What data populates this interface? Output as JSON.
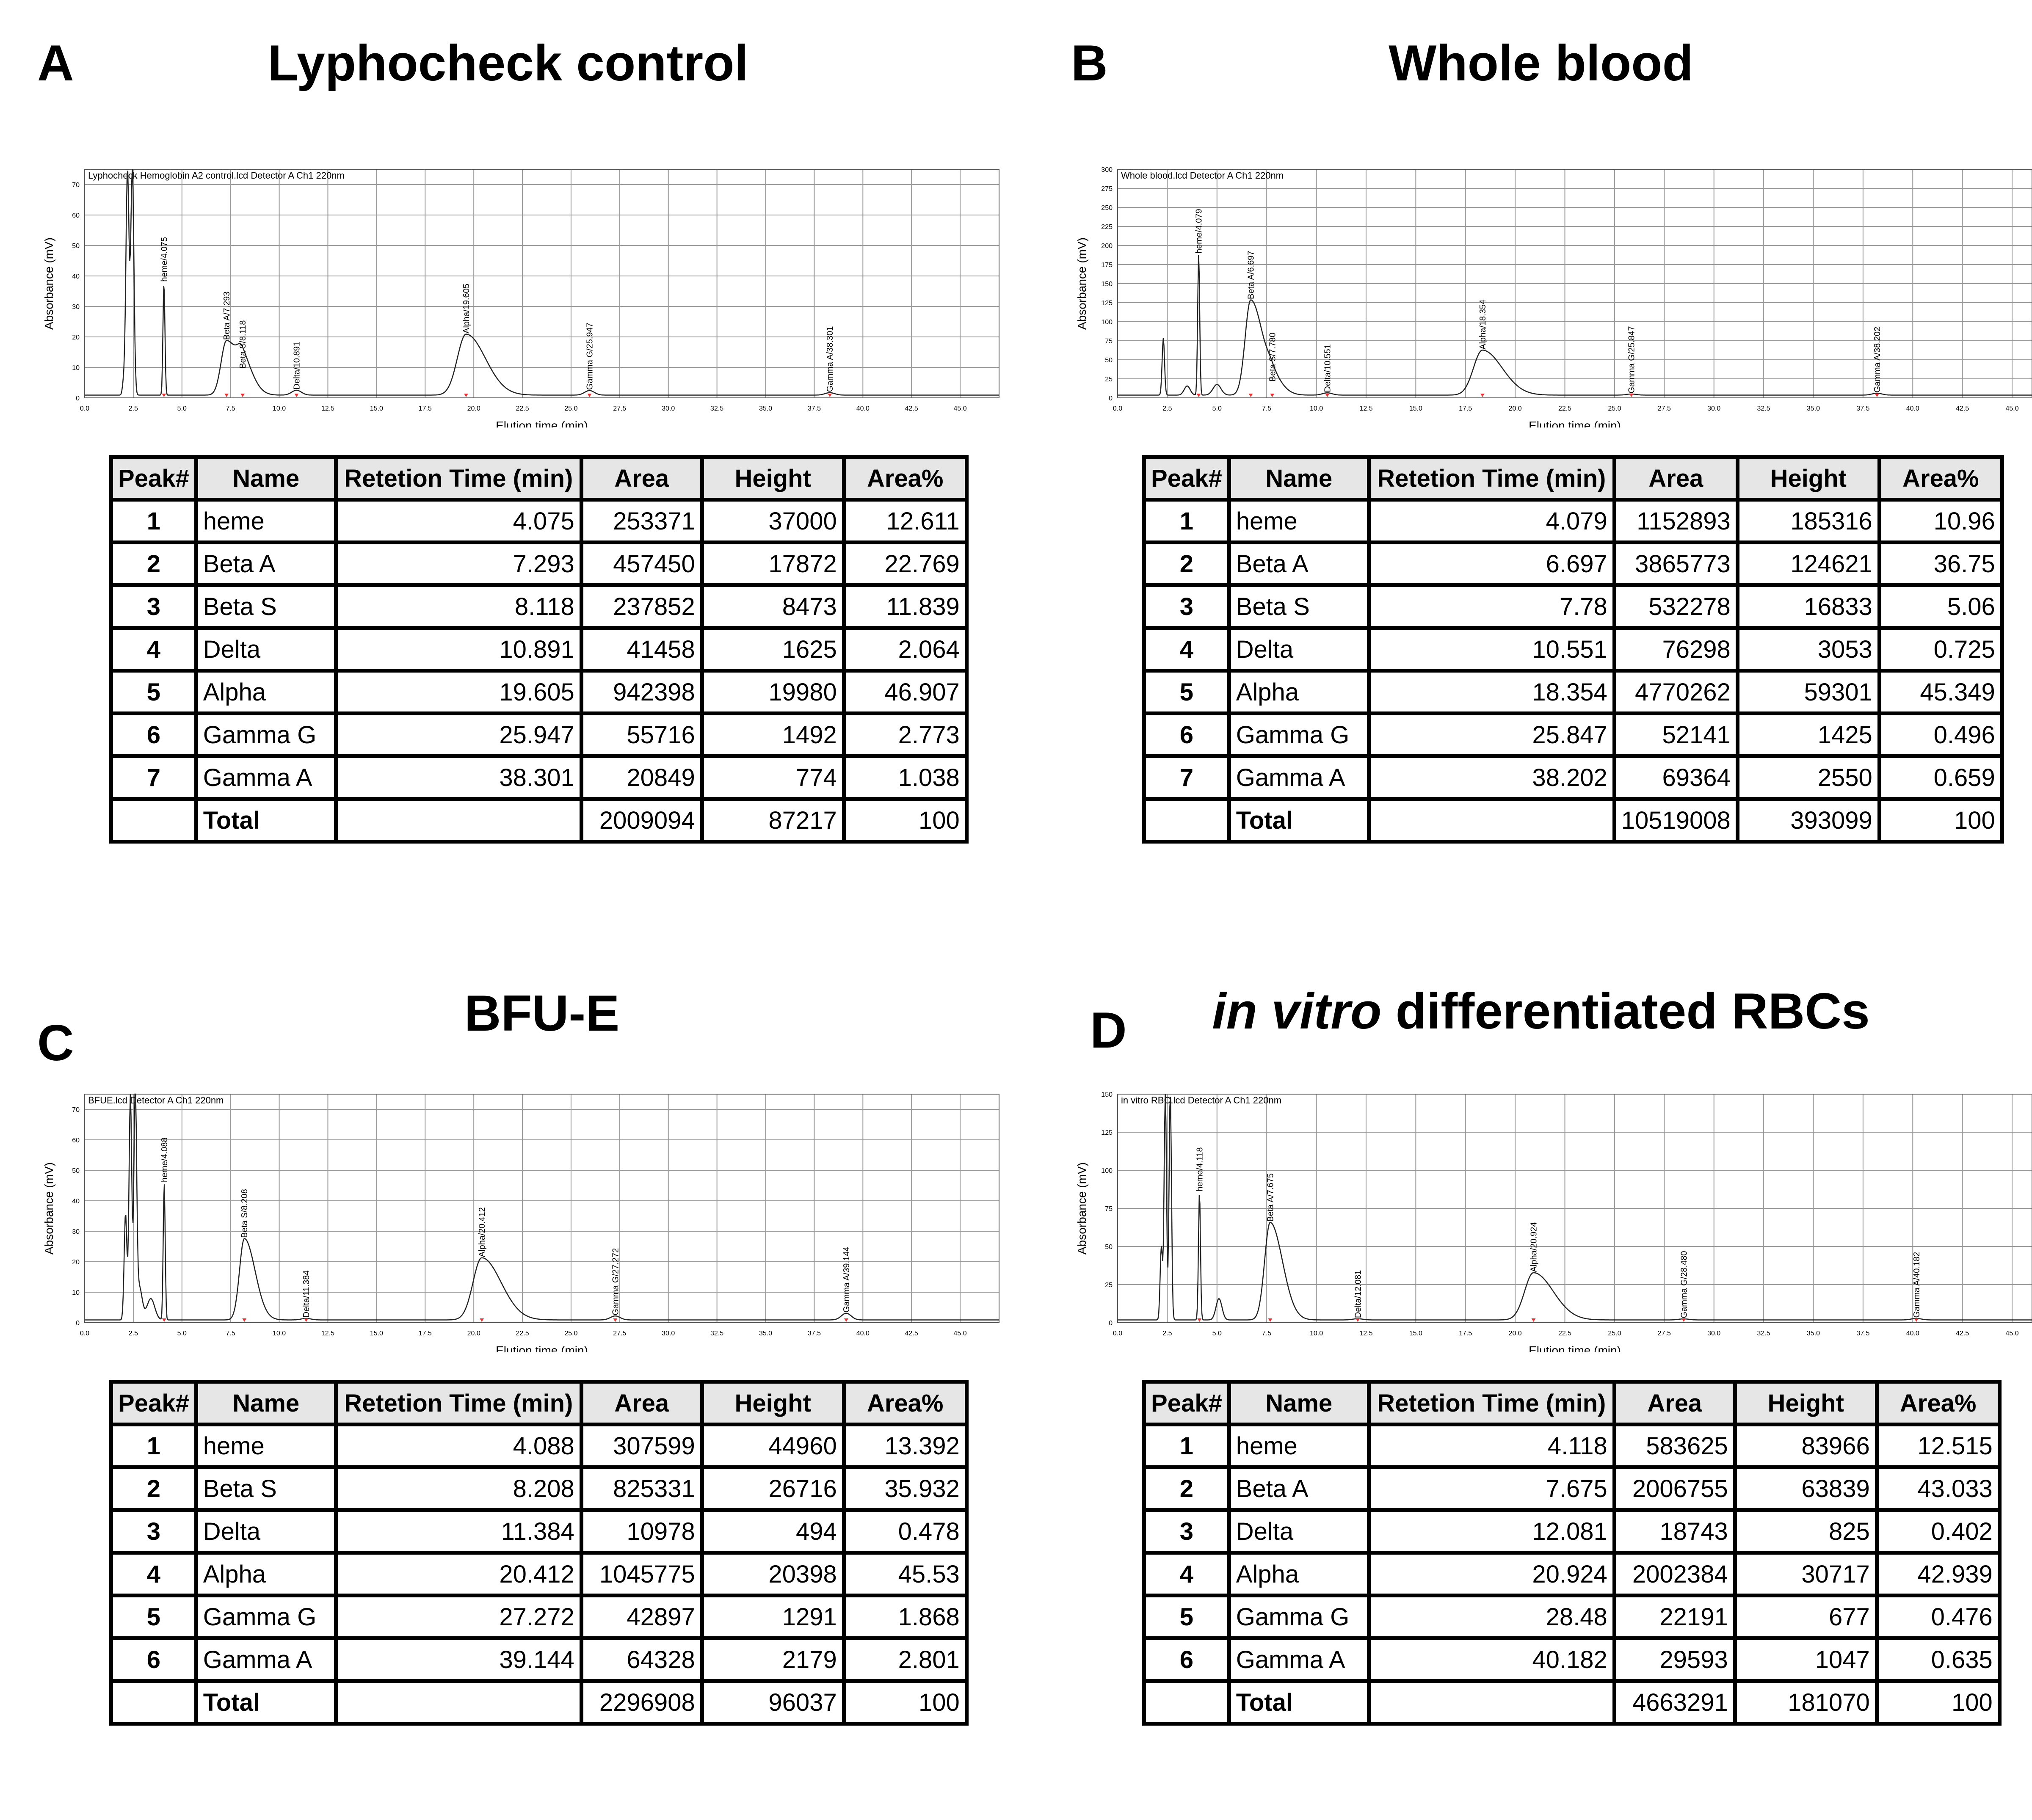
{
  "panels": [
    {
      "letter": "A",
      "title": "Lyphocheck control",
      "chart_header": "Lyphocheck Hemoglobin A2 control.lcd Detector A Ch1 220nm",
      "table": {
        "columns": [
          "Peak#",
          "Name",
          "Retetion Time (min)",
          "Area",
          "Height",
          "Area%"
        ],
        "rows": [
          [
            "1",
            "heme",
            "4.075",
            "253371",
            "37000",
            "12.611"
          ],
          [
            "2",
            "Beta A",
            "7.293",
            "457450",
            "17872",
            "22.769"
          ],
          [
            "3",
            "Beta S",
            "8.118",
            "237852",
            "8473",
            "11.839"
          ],
          [
            "4",
            "Delta",
            "10.891",
            "41458",
            "1625",
            "2.064"
          ],
          [
            "5",
            "Alpha",
            "19.605",
            "942398",
            "19980",
            "46.907"
          ],
          [
            "6",
            "Gamma G",
            "25.947",
            "55716",
            "1492",
            "2.773"
          ],
          [
            "7",
            "Gamma A",
            "38.301",
            "20849",
            "774",
            "1.038"
          ]
        ],
        "total": [
          "",
          "Total",
          "",
          "2009094",
          "87217",
          "100"
        ]
      }
    },
    {
      "letter": "B",
      "title": "Whole blood",
      "chart_header": "Whole blood.lcd Detector A Ch1 220nm",
      "table": {
        "columns": [
          "Peak#",
          "Name",
          "Retetion Time (min)",
          "Area",
          "Height",
          "Area%"
        ],
        "rows": [
          [
            "1",
            "heme",
            "4.079",
            "1152893",
            "185316",
            "10.96"
          ],
          [
            "2",
            "Beta A",
            "6.697",
            "3865773",
            "124621",
            "36.75"
          ],
          [
            "3",
            "Beta S",
            "7.78",
            "532278",
            "16833",
            "5.06"
          ],
          [
            "4",
            "Delta",
            "10.551",
            "76298",
            "3053",
            "0.725"
          ],
          [
            "5",
            "Alpha",
            "18.354",
            "4770262",
            "59301",
            "45.349"
          ],
          [
            "6",
            "Gamma G",
            "25.847",
            "52141",
            "1425",
            "0.496"
          ],
          [
            "7",
            "Gamma A",
            "38.202",
            "69364",
            "2550",
            "0.659"
          ]
        ],
        "total": [
          "",
          "Total",
          "",
          "10519008",
          "393099",
          "100"
        ]
      }
    },
    {
      "letter": "C",
      "title": "BFU-E",
      "chart_header": "BFUE.lcd Detector A Ch1 220nm",
      "table": {
        "columns": [
          "Peak#",
          "Name",
          "Retetion Time (min)",
          "Area",
          "Height",
          "Area%"
        ],
        "rows": [
          [
            "1",
            "heme",
            "4.088",
            "307599",
            "44960",
            "13.392"
          ],
          [
            "2",
            "Beta S",
            "8.208",
            "825331",
            "26716",
            "35.932"
          ],
          [
            "3",
            "Delta",
            "11.384",
            "10978",
            "494",
            "0.478"
          ],
          [
            "4",
            "Alpha",
            "20.412",
            "1045775",
            "20398",
            "45.53"
          ],
          [
            "5",
            "Gamma G",
            "27.272",
            "42897",
            "1291",
            "1.868"
          ],
          [
            "6",
            "Gamma A",
            "39.144",
            "64328",
            "2179",
            "2.801"
          ]
        ],
        "total": [
          "",
          "Total",
          "",
          "2296908",
          "96037",
          "100"
        ]
      }
    },
    {
      "letter": "D",
      "title_italic": "in vitro",
      "title_rest": " differentiated RBCs",
      "chart_header": "in vitro RBC.lcd Detector A Ch1 220nm",
      "table": {
        "columns": [
          "Peak#",
          "Name",
          "Retetion Time (min)",
          "Area",
          "Height",
          "Area%"
        ],
        "rows": [
          [
            "1",
            "heme",
            "4.118",
            "583625",
            "83966",
            "12.515"
          ],
          [
            "2",
            "Beta A",
            "7.675",
            "2006755",
            "63839",
            "43.033"
          ],
          [
            "3",
            "Delta",
            "12.081",
            "18743",
            "825",
            "0.402"
          ],
          [
            "4",
            "Alpha",
            "20.924",
            "2002384",
            "30717",
            "42.939"
          ],
          [
            "5",
            "Gamma G",
            "28.48",
            "22191",
            "677",
            "0.476"
          ],
          [
            "6",
            "Gamma A",
            "40.182",
            "29593",
            "1047",
            "0.635"
          ]
        ],
        "total": [
          "",
          "Total",
          "",
          "4663291",
          "181070",
          "100"
        ]
      }
    }
  ],
  "chart_data": [
    {
      "type": "line",
      "header": "Lyphocheck Hemoglobin A2 control.lcd Detector A Ch1 220nm",
      "xlabel": "Elution time (min)",
      "ylabel": "Absorbance (mV)",
      "unit_y": "mV",
      "unit_x": "min",
      "xlim": [
        0,
        47
      ],
      "ylim": [
        0,
        75
      ],
      "xticks": [
        "0.0",
        "2.5",
        "5.0",
        "7.5",
        "10.0",
        "12.5",
        "15.0",
        "17.5",
        "20.0",
        "22.5",
        "25.0",
        "27.5",
        "30.0",
        "32.5",
        "35.0",
        "37.5",
        "40.0",
        "42.5",
        "45.0"
      ],
      "yticks": [
        "0",
        "10",
        "20",
        "30",
        "40",
        "50",
        "60",
        "70"
      ],
      "peaks": [
        {
          "label": "heme/4.075",
          "x": 4.075,
          "y": 37
        },
        {
          "label": "Beta A/7.293",
          "x": 7.293,
          "y": 17.9
        },
        {
          "label": "Beta S/8.118",
          "x": 8.118,
          "y": 8.5
        },
        {
          "label": "Delta/10.891",
          "x": 10.891,
          "y": 1.6
        },
        {
          "label": "Alpha/19.605",
          "x": 19.605,
          "y": 20
        },
        {
          "label": "Gamma G/25.947",
          "x": 25.947,
          "y": 1.5
        },
        {
          "label": "Gamma A/38.301",
          "x": 38.301,
          "y": 0.8
        }
      ],
      "unlabeled_peaks": [
        {
          "x": 2.2,
          "y": 74,
          "w": 0.08
        },
        {
          "x": 2.45,
          "y": 74,
          "w": 0.08
        },
        {
          "x": 2.0,
          "y": 4,
          "w": 0.06
        }
      ]
    },
    {
      "type": "line",
      "header": "Whole blood.lcd Detector A Ch1 220nm",
      "xlabel": "Elution time (min)",
      "ylabel": "Absorbance (mV)",
      "xlim": [
        0,
        46
      ],
      "ylim": [
        0,
        300
      ],
      "xticks": [
        "0.0",
        "2.5",
        "5.0",
        "7.5",
        "10.0",
        "12.5",
        "15.0",
        "17.5",
        "20.0",
        "22.5",
        "25.0",
        "27.5",
        "30.0",
        "32.5",
        "35.0",
        "37.5",
        "40.0",
        "42.5",
        "45.0"
      ],
      "yticks": [
        "0",
        "25",
        "50",
        "75",
        "100",
        "125",
        "150",
        "175",
        "200",
        "225",
        "250",
        "275",
        "300"
      ],
      "peaks": [
        {
          "label": "heme/4.079",
          "x": 4.079,
          "y": 185
        },
        {
          "label": "Beta A/6.697",
          "x": 6.697,
          "y": 125
        },
        {
          "label": "Beta S/7.780",
          "x": 7.78,
          "y": 17
        },
        {
          "label": "Delta/10.551",
          "x": 10.551,
          "y": 3
        },
        {
          "label": "Alpha/18.354",
          "x": 18.354,
          "y": 59
        },
        {
          "label": "Gamma G/25.847",
          "x": 25.847,
          "y": 1.4
        },
        {
          "label": "Gamma A/38.202",
          "x": 38.202,
          "y": 2.5
        }
      ],
      "unlabeled_peaks": [
        {
          "x": 2.3,
          "y": 75,
          "w": 0.06
        },
        {
          "x": 3.5,
          "y": 12,
          "w": 0.15
        },
        {
          "x": 5.0,
          "y": 14,
          "w": 0.2
        }
      ]
    },
    {
      "type": "line",
      "header": "BFUE.lcd Detector A Ch1 220nm",
      "xlabel": "Elution time (min)",
      "ylabel": "Absorbance (mV)",
      "xlim": [
        0,
        47
      ],
      "ylim": [
        0,
        75
      ],
      "xticks": [
        "0.0",
        "2.5",
        "5.0",
        "7.5",
        "10.0",
        "12.5",
        "15.0",
        "17.5",
        "20.0",
        "22.5",
        "25.0",
        "27.5",
        "30.0",
        "32.5",
        "35.0",
        "37.5",
        "40.0",
        "42.5",
        "45.0"
      ],
      "yticks": [
        "0",
        "10",
        "20",
        "30",
        "40",
        "50",
        "60",
        "70"
      ],
      "peaks": [
        {
          "label": "heme/4.088",
          "x": 4.088,
          "y": 45
        },
        {
          "label": "Beta S/8.208",
          "x": 8.208,
          "y": 26.7
        },
        {
          "label": "Delta/11.384",
          "x": 11.384,
          "y": 0.5
        },
        {
          "label": "Alpha/20.412",
          "x": 20.412,
          "y": 20.4
        },
        {
          "label": "Gamma G/27.272",
          "x": 27.272,
          "y": 1.3
        },
        {
          "label": "Gamma A/39.144",
          "x": 39.144,
          "y": 2.2
        }
      ],
      "unlabeled_peaks": [
        {
          "x": 2.1,
          "y": 35,
          "w": 0.07
        },
        {
          "x": 2.35,
          "y": 74,
          "w": 0.07
        },
        {
          "x": 2.6,
          "y": 74,
          "w": 0.07
        },
        {
          "x": 2.8,
          "y": 11,
          "w": 0.15
        },
        {
          "x": 3.4,
          "y": 7,
          "w": 0.2
        }
      ]
    },
    {
      "type": "line",
      "header": "in vitro RBC.lcd Detector A Ch1 220nm",
      "xlabel": "Elution time (min)",
      "ylabel": "Absorbance (mV)",
      "xlim": [
        0,
        46
      ],
      "ylim": [
        0,
        150
      ],
      "xticks": [
        "0.0",
        "2.5",
        "5.0",
        "7.5",
        "10.0",
        "12.5",
        "15.0",
        "17.5",
        "20.0",
        "22.5",
        "25.0",
        "27.5",
        "30.0",
        "32.5",
        "35.0",
        "37.5",
        "40.0",
        "42.5",
        "45.0"
      ],
      "yticks": [
        "0",
        "25",
        "50",
        "75",
        "100",
        "125",
        "150"
      ],
      "peaks": [
        {
          "label": "heme/4.118",
          "x": 4.118,
          "y": 84
        },
        {
          "label": "Beta A/7.675",
          "x": 7.675,
          "y": 64
        },
        {
          "label": "Delta/12.081",
          "x": 12.081,
          "y": 0.8
        },
        {
          "label": "Alpha/20.924",
          "x": 20.924,
          "y": 31
        },
        {
          "label": "Gamma G/28.480",
          "x": 28.48,
          "y": 0.7
        },
        {
          "label": "Gamma A/40.182",
          "x": 40.182,
          "y": 1.0
        }
      ],
      "unlabeled_peaks": [
        {
          "x": 2.2,
          "y": 48,
          "w": 0.06
        },
        {
          "x": 2.4,
          "y": 149,
          "w": 0.06
        },
        {
          "x": 2.65,
          "y": 149,
          "w": 0.06
        },
        {
          "x": 5.1,
          "y": 14,
          "w": 0.15
        }
      ]
    }
  ]
}
